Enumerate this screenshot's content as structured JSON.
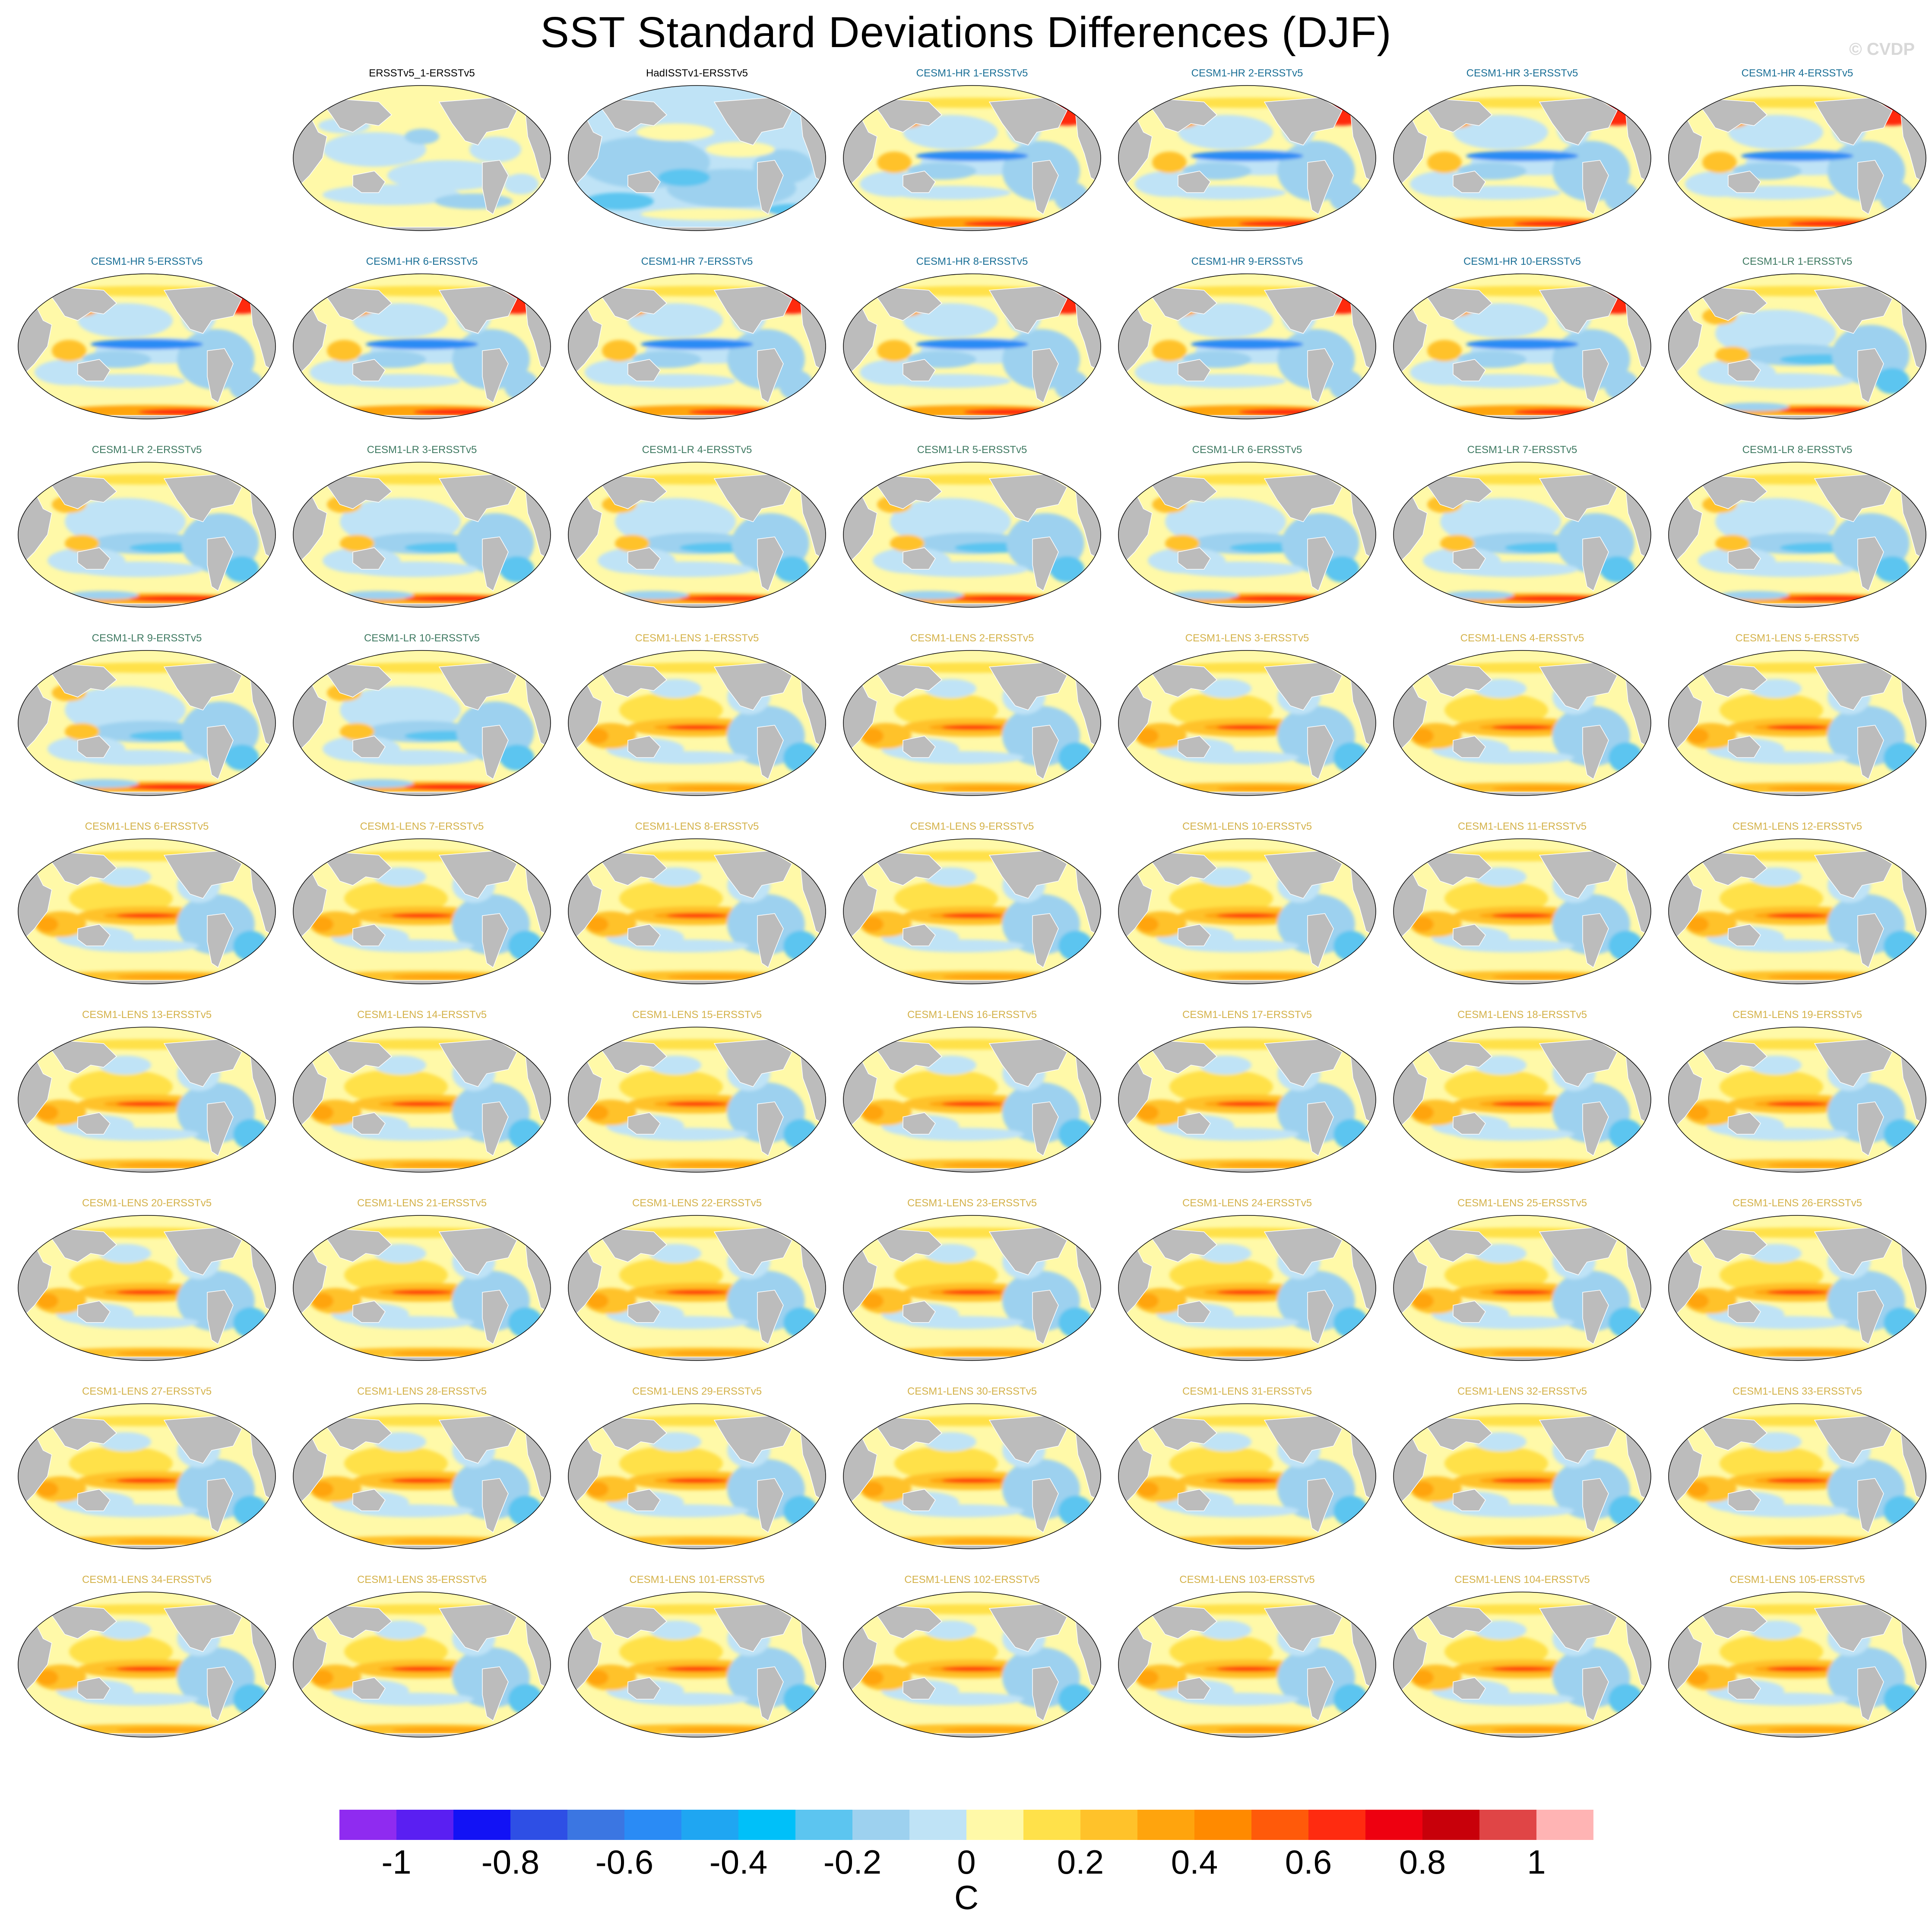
{
  "figure": {
    "title": "SST Standard Deviations Differences (DJF)",
    "watermark": "© CVDP"
  },
  "chart_data": {
    "type": "heatmap",
    "title": "SST Standard Deviations Differences (DJF)",
    "units": "C",
    "projection": "global map",
    "colorbar": {
      "orientation": "horizontal",
      "position": "bottom",
      "ticks": [
        -1,
        -0.8,
        -0.6,
        -0.4,
        -0.2,
        0,
        0.2,
        0.4,
        0.6,
        0.8,
        1
      ],
      "tick_labels": [
        "-1",
        "-0.8",
        "-0.6",
        "-0.4",
        "-0.2",
        "0",
        "0.2",
        "0.4",
        "0.6",
        "0.8",
        "1"
      ],
      "levels": [
        -1.1,
        -1.0,
        -0.9,
        -0.8,
        -0.7,
        -0.6,
        -0.5,
        -0.4,
        -0.3,
        -0.2,
        -0.1,
        0,
        0.1,
        0.2,
        0.3,
        0.4,
        0.5,
        0.6,
        0.7,
        0.8,
        0.9,
        1.0,
        1.1
      ],
      "colors": [
        "#8f2bf0",
        "#5a1ff2",
        "#1212f5",
        "#2e4fe5",
        "#3b76e2",
        "#2a8bf5",
        "#1fa6f2",
        "#00c0f9",
        "#5cc5f0",
        "#9dd1ef",
        "#bfe3f6",
        "#fff9a8",
        "#ffe14a",
        "#ffc22a",
        "#ffa40d",
        "#ff8a00",
        "#ff5a0a",
        "#ff2b10",
        "#ee0010",
        "#c8000a",
        "#e04546",
        "#ffb4b4"
      ],
      "label": "C"
    },
    "panels": [
      {
        "title": "ERSSTv5_1-ERSSTv5",
        "group": "obs",
        "pattern": "obs1"
      },
      {
        "title": "HadISSTv1-ERSSTv5",
        "group": "obs",
        "pattern": "obs2"
      },
      {
        "title": "CESM1-HR 1-ERSSTv5",
        "group": "hr",
        "pattern": "hr"
      },
      {
        "title": "CESM1-HR 2-ERSSTv5",
        "group": "hr",
        "pattern": "hr"
      },
      {
        "title": "CESM1-HR 3-ERSSTv5",
        "group": "hr",
        "pattern": "hr"
      },
      {
        "title": "CESM1-HR 4-ERSSTv5",
        "group": "hr",
        "pattern": "hr"
      },
      {
        "title": "CESM1-HR 5-ERSSTv5",
        "group": "hr",
        "pattern": "hr"
      },
      {
        "title": "CESM1-HR 6-ERSSTv5",
        "group": "hr",
        "pattern": "hr"
      },
      {
        "title": "CESM1-HR 7-ERSSTv5",
        "group": "hr",
        "pattern": "hr"
      },
      {
        "title": "CESM1-HR 8-ERSSTv5",
        "group": "hr",
        "pattern": "hr"
      },
      {
        "title": "CESM1-HR 9-ERSSTv5",
        "group": "hr",
        "pattern": "hr"
      },
      {
        "title": "CESM1-HR 10-ERSSTv5",
        "group": "hr",
        "pattern": "hr"
      },
      {
        "title": "CESM1-LR 1-ERSSTv5",
        "group": "lr",
        "pattern": "lr"
      },
      {
        "title": "CESM1-LR 2-ERSSTv5",
        "group": "lr",
        "pattern": "lr"
      },
      {
        "title": "CESM1-LR 3-ERSSTv5",
        "group": "lr",
        "pattern": "lr"
      },
      {
        "title": "CESM1-LR 4-ERSSTv5",
        "group": "lr",
        "pattern": "lr"
      },
      {
        "title": "CESM1-LR 5-ERSSTv5",
        "group": "lr",
        "pattern": "lr"
      },
      {
        "title": "CESM1-LR 6-ERSSTv5",
        "group": "lr",
        "pattern": "lr"
      },
      {
        "title": "CESM1-LR 7-ERSSTv5",
        "group": "lr",
        "pattern": "lr"
      },
      {
        "title": "CESM1-LR 8-ERSSTv5",
        "group": "lr",
        "pattern": "lr"
      },
      {
        "title": "CESM1-LR 9-ERSSTv5",
        "group": "lr",
        "pattern": "lr"
      },
      {
        "title": "CESM1-LR 10-ERSSTv5",
        "group": "lr",
        "pattern": "lr"
      },
      {
        "title": "CESM1-LENS 1-ERSSTv5",
        "group": "lens",
        "pattern": "lens"
      },
      {
        "title": "CESM1-LENS 2-ERSSTv5",
        "group": "lens",
        "pattern": "lens"
      },
      {
        "title": "CESM1-LENS 3-ERSSTv5",
        "group": "lens",
        "pattern": "lens"
      },
      {
        "title": "CESM1-LENS 4-ERSSTv5",
        "group": "lens",
        "pattern": "lens"
      },
      {
        "title": "CESM1-LENS 5-ERSSTv5",
        "group": "lens",
        "pattern": "lens"
      },
      {
        "title": "CESM1-LENS 6-ERSSTv5",
        "group": "lens",
        "pattern": "lens"
      },
      {
        "title": "CESM1-LENS 7-ERSSTv5",
        "group": "lens",
        "pattern": "lens"
      },
      {
        "title": "CESM1-LENS 8-ERSSTv5",
        "group": "lens",
        "pattern": "lens"
      },
      {
        "title": "CESM1-LENS 9-ERSSTv5",
        "group": "lens",
        "pattern": "lens"
      },
      {
        "title": "CESM1-LENS 10-ERSSTv5",
        "group": "lens",
        "pattern": "lens"
      },
      {
        "title": "CESM1-LENS 11-ERSSTv5",
        "group": "lens",
        "pattern": "lens"
      },
      {
        "title": "CESM1-LENS 12-ERSSTv5",
        "group": "lens",
        "pattern": "lens"
      },
      {
        "title": "CESM1-LENS 13-ERSSTv5",
        "group": "lens",
        "pattern": "lens"
      },
      {
        "title": "CESM1-LENS 14-ERSSTv5",
        "group": "lens",
        "pattern": "lens"
      },
      {
        "title": "CESM1-LENS 15-ERSSTv5",
        "group": "lens",
        "pattern": "lens"
      },
      {
        "title": "CESM1-LENS 16-ERSSTv5",
        "group": "lens",
        "pattern": "lens"
      },
      {
        "title": "CESM1-LENS 17-ERSSTv5",
        "group": "lens",
        "pattern": "lens"
      },
      {
        "title": "CESM1-LENS 18-ERSSTv5",
        "group": "lens",
        "pattern": "lens"
      },
      {
        "title": "CESM1-LENS 19-ERSSTv5",
        "group": "lens",
        "pattern": "lens"
      },
      {
        "title": "CESM1-LENS 20-ERSSTv5",
        "group": "lens",
        "pattern": "lens"
      },
      {
        "title": "CESM1-LENS 21-ERSSTv5",
        "group": "lens",
        "pattern": "lens"
      },
      {
        "title": "CESM1-LENS 22-ERSSTv5",
        "group": "lens",
        "pattern": "lens"
      },
      {
        "title": "CESM1-LENS 23-ERSSTv5",
        "group": "lens",
        "pattern": "lens"
      },
      {
        "title": "CESM1-LENS 24-ERSSTv5",
        "group": "lens",
        "pattern": "lens"
      },
      {
        "title": "CESM1-LENS 25-ERSSTv5",
        "group": "lens",
        "pattern": "lens"
      },
      {
        "title": "CESM1-LENS 26-ERSSTv5",
        "group": "lens",
        "pattern": "lens"
      },
      {
        "title": "CESM1-LENS 27-ERSSTv5",
        "group": "lens",
        "pattern": "lens"
      },
      {
        "title": "CESM1-LENS 28-ERSSTv5",
        "group": "lens",
        "pattern": "lens"
      },
      {
        "title": "CESM1-LENS 29-ERSSTv5",
        "group": "lens",
        "pattern": "lens"
      },
      {
        "title": "CESM1-LENS 30-ERSSTv5",
        "group": "lens",
        "pattern": "lens"
      },
      {
        "title": "CESM1-LENS 31-ERSSTv5",
        "group": "lens",
        "pattern": "lens"
      },
      {
        "title": "CESM1-LENS 32-ERSSTv5",
        "group": "lens",
        "pattern": "lens"
      },
      {
        "title": "CESM1-LENS 33-ERSSTv5",
        "group": "lens",
        "pattern": "lens"
      },
      {
        "title": "CESM1-LENS 34-ERSSTv5",
        "group": "lens",
        "pattern": "lens"
      },
      {
        "title": "CESM1-LENS 35-ERSSTv5",
        "group": "lens",
        "pattern": "lens"
      },
      {
        "title": "CESM1-LENS 101-ERSSTv5",
        "group": "lens",
        "pattern": "lens"
      },
      {
        "title": "CESM1-LENS 102-ERSSTv5",
        "group": "lens",
        "pattern": "lens"
      },
      {
        "title": "CESM1-LENS 103-ERSSTv5",
        "group": "lens",
        "pattern": "lens"
      },
      {
        "title": "CESM1-LENS 104-ERSSTv5",
        "group": "lens",
        "pattern": "lens"
      },
      {
        "title": "CESM1-LENS 105-ERSSTv5",
        "group": "lens",
        "pattern": "lens"
      }
    ]
  },
  "styles": {
    "title_colors": {
      "obs": "#000000",
      "hr": "#1a6f96",
      "lr": "#3f7a62",
      "lens": "#d4b24a"
    },
    "land_color": "#bcbcbc",
    "coast_color": "#ffffff"
  }
}
